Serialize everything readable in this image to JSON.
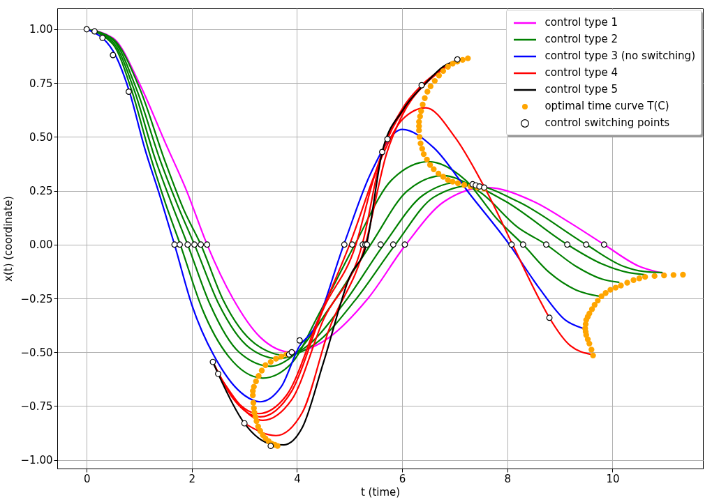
{
  "chart_data": {
    "type": "line",
    "xlabel": "t (time)",
    "ylabel": "x(t) (coordinate)",
    "xlim": [
      -0.56,
      11.72
    ],
    "ylim": [
      -1.04,
      1.097
    ],
    "xticks": [
      0,
      2,
      4,
      6,
      8,
      10
    ],
    "yticks": [
      {
        "value": -1,
        "label": "−1.00"
      },
      {
        "value": -0.75,
        "label": "−0.75"
      },
      {
        "value": -0.5,
        "label": "−0.50"
      },
      {
        "value": -0.25,
        "label": "−0.25"
      },
      {
        "value": 0,
        "label": "0.00"
      },
      {
        "value": 0.25,
        "label": "0.25"
      },
      {
        "value": 0.5,
        "label": "0.50"
      },
      {
        "value": 0.75,
        "label": "0.75"
      },
      {
        "value": 1,
        "label": "1.00"
      }
    ],
    "grid": true,
    "legend": "top right",
    "series": [
      {
        "name": "control type 1",
        "color": "#ff00ff",
        "x": [
          0,
          0.5,
          1,
          1.5,
          1.9,
          2.29,
          2.78,
          3.3,
          3.9,
          4.5,
          5.35,
          6.07,
          6.8,
          7.6,
          8.5,
          9.2,
          9.84,
          10.5,
          11.0
        ],
        "values": [
          1,
          0.96,
          0.75,
          0.47,
          0.25,
          0,
          -0.25,
          -0.43,
          -0.5,
          -0.45,
          -0.25,
          0,
          0.2,
          0.265,
          0.2,
          0.1,
          0,
          -0.1,
          -0.135
        ]
      },
      {
        "name": "control type 2",
        "color": "#008000",
        "x": [
          0,
          0.5,
          0.85,
          1.2,
          1.5,
          1.78,
          2.2,
          2.7,
          3.35,
          3.9,
          4.4,
          5.1,
          5.8,
          6.5,
          7.2,
          7.8,
          8.3,
          8.8,
          9.3,
          9.75
        ],
        "values": [
          1,
          0.93,
          0.72,
          0.42,
          0.19,
          0,
          -0.3,
          -0.52,
          -0.62,
          -0.55,
          -0.33,
          0,
          0.3,
          0.385,
          0.3,
          0.12,
          0,
          -0.13,
          -0.21,
          -0.24
        ]
      },
      {
        "color": "#008000",
        "x": [
          0,
          0.5,
          0.9,
          1.3,
          1.6,
          1.92,
          2.35,
          2.9,
          3.5,
          4.0,
          4.6,
          5.4,
          6.1,
          6.78,
          7.5,
          8.2,
          8.74,
          9.3,
          9.8,
          10.12
        ],
        "values": [
          1,
          0.94,
          0.72,
          0.4,
          0.2,
          0,
          -0.28,
          -0.5,
          -0.565,
          -0.5,
          -0.3,
          0,
          0.25,
          0.32,
          0.24,
          0.08,
          0,
          -0.1,
          -0.16,
          -0.175
        ]
      },
      {
        "color": "#008000",
        "x": [
          0,
          0.5,
          0.95,
          1.4,
          1.75,
          2.05,
          2.5,
          3.1,
          3.65,
          4.2,
          4.9,
          5.65,
          6.4,
          7.1,
          7.9,
          9.14,
          9.8,
          10.3,
          10.62
        ],
        "values": [
          1,
          0.95,
          0.72,
          0.39,
          0.17,
          0,
          -0.27,
          -0.48,
          -0.53,
          -0.47,
          -0.27,
          0,
          0.23,
          0.29,
          0.21,
          0,
          -0.09,
          -0.13,
          -0.14
        ]
      },
      {
        "color": "#008000",
        "x": [
          0,
          0.5,
          1.0,
          1.5,
          1.85,
          2.17,
          2.6,
          3.2,
          3.8,
          4.35,
          5.1,
          5.87,
          6.6,
          7.35,
          8.2,
          9.5,
          10.2,
          10.6,
          10.94
        ],
        "values": [
          1,
          0.955,
          0.73,
          0.38,
          0.16,
          0,
          -0.26,
          -0.46,
          -0.515,
          -0.46,
          -0.26,
          0,
          0.22,
          0.275,
          0.2,
          0,
          -0.1,
          -0.125,
          -0.13
        ]
      },
      {
        "name": "control type 3 (no switching)",
        "color": "#0000ff",
        "x": [
          0,
          0.5,
          0.8,
          1.1,
          1.4,
          1.67,
          2.0,
          2.5,
          3.0,
          3.3,
          3.7,
          4.05,
          4.3,
          4.89,
          5.4,
          6.0,
          6.6,
          7.3,
          8.04,
          8.6,
          9.1,
          9.45
        ],
        "values": [
          1,
          0.9,
          0.72,
          0.45,
          0.22,
          0,
          -0.28,
          -0.55,
          -0.7,
          -0.73,
          -0.66,
          -0.47,
          -0.4,
          0,
          0.33,
          0.535,
          0.45,
          0.23,
          0,
          -0.2,
          -0.35,
          -0.39
        ]
      },
      {
        "name": "control type 4",
        "color": "#ff0000",
        "x": [
          2.4,
          2.7,
          3.27,
          3.8,
          4.4,
          5.0,
          5.6,
          6.0,
          6.45,
          7.0,
          7.6,
          8.1,
          8.6,
          8.8,
          9.2,
          9.6
        ],
        "values": [
          -0.545,
          -0.68,
          -0.785,
          -0.7,
          -0.35,
          0,
          0.4,
          0.58,
          0.635,
          0.5,
          0.25,
          0,
          -0.25,
          -0.34,
          -0.47,
          -0.51
        ]
      },
      {
        "color": "#ff0000",
        "x": [
          2.4,
          2.8,
          3.3,
          3.9,
          4.5,
          5.12,
          5.45,
          5.72,
          6.1,
          6.5,
          7.05
        ],
        "values": [
          -0.545,
          -0.72,
          -0.8,
          -0.68,
          -0.3,
          0,
          0.3,
          0.49,
          0.65,
          0.76,
          0.86
        ]
      },
      {
        "color": "#ff0000",
        "x": [
          2.5,
          3.35,
          3.9,
          4.5,
          5.24,
          5.62,
          6.0,
          6.37,
          6.8,
          7.1
        ],
        "values": [
          -0.6,
          -0.816,
          -0.72,
          -0.35,
          0,
          0.43,
          0.63,
          0.74,
          0.82,
          0.86
        ]
      },
      {
        "color": "#ff0000",
        "x": [
          3.0,
          3.6,
          4.1,
          4.6,
          5.3,
          5.7,
          6.0,
          6.4,
          7.1
        ],
        "values": [
          -0.83,
          -0.887,
          -0.78,
          -0.4,
          0,
          0.42,
          0.6,
          0.74,
          0.86
        ]
      },
      {
        "name": "control type 5",
        "color": "#000000",
        "x": [
          2.4,
          2.5,
          3.0,
          3.5,
          3.75,
          4.1,
          4.5,
          5.0,
          5.32,
          5.62,
          6.0,
          6.45,
          6.8,
          7.1
        ],
        "values": [
          -0.545,
          -0.6,
          -0.83,
          -0.925,
          -0.93,
          -0.85,
          -0.55,
          -0.15,
          0,
          0.43,
          0.62,
          0.75,
          0.83,
          0.86
        ]
      },
      {
        "name": "optimal time curve T(C)",
        "color": "#ffa500",
        "type": "scatter",
        "marker": "circle",
        "x": [
          3.8,
          3.7,
          3.6,
          3.5,
          3.4,
          3.33,
          3.27,
          3.22,
          3.18,
          3.16,
          3.16,
          3.17,
          3.18,
          3.19,
          3.21,
          3.23,
          3.26,
          3.3,
          3.35,
          3.4,
          3.46,
          3.52,
          3.58,
          3.63,
          7.25,
          7.15,
          7.05,
          6.96,
          6.87,
          6.78,
          6.7,
          6.62,
          6.54,
          6.48,
          6.43,
          6.39,
          6.36,
          6.34,
          6.32,
          6.32,
          6.32,
          6.33,
          6.35,
          6.38,
          6.41,
          6.47,
          6.53,
          6.6,
          6.69,
          6.78,
          6.87,
          6.96,
          7.06,
          7.18,
          7.3,
          7.43,
          7.56,
          9.63,
          9.6,
          9.56,
          9.53,
          9.5,
          9.49,
          9.48,
          9.49,
          9.5,
          9.53,
          9.56,
          9.61,
          9.66,
          9.72,
          9.79,
          9.87,
          9.96,
          10.06,
          10.16,
          10.28,
          10.4,
          10.51,
          10.62,
          10.8,
          10.98,
          11.16,
          11.34
        ],
        "values": [
          -0.51,
          -0.52,
          -0.53,
          -0.545,
          -0.56,
          -0.585,
          -0.61,
          -0.635,
          -0.66,
          -0.68,
          -0.7,
          -0.735,
          -0.76,
          -0.78,
          -0.8,
          -0.82,
          -0.845,
          -0.865,
          -0.885,
          -0.9,
          -0.913,
          -0.925,
          -0.93,
          -0.935,
          0.865,
          0.858,
          0.85,
          0.84,
          0.826,
          0.806,
          0.785,
          0.76,
          0.735,
          0.71,
          0.68,
          0.65,
          0.62,
          0.595,
          0.57,
          0.55,
          0.53,
          0.5,
          0.47,
          0.445,
          0.42,
          0.395,
          0.37,
          0.35,
          0.33,
          0.315,
          0.3,
          0.292,
          0.285,
          0.277,
          0.27,
          0.265,
          0.26,
          -0.515,
          -0.488,
          -0.46,
          -0.44,
          -0.42,
          -0.405,
          -0.39,
          -0.37,
          -0.35,
          -0.335,
          -0.32,
          -0.3,
          -0.28,
          -0.26,
          -0.24,
          -0.225,
          -0.21,
          -0.2,
          -0.19,
          -0.177,
          -0.165,
          -0.157,
          -0.15,
          -0.146,
          -0.143,
          -0.141,
          -0.14
        ]
      },
      {
        "name": "control switching points",
        "color": "#ffffff",
        "type": "scatter",
        "marker": "circle",
        "x": [
          0,
          0.15,
          0.3,
          0.5,
          0.8,
          1.67,
          1.77,
          1.92,
          2.05,
          2.17,
          2.29,
          2.4,
          2.5,
          3.0,
          3.5,
          3.85,
          3.9,
          4.05,
          4.9,
          5.05,
          5.25,
          5.3,
          5.33,
          5.59,
          5.83,
          6.05,
          5.62,
          5.72,
          6.37,
          7.05,
          7.34,
          7.4,
          7.47,
          7.56,
          8.08,
          8.3,
          8.74,
          9.14,
          9.5,
          9.84,
          8.8
        ],
        "values": [
          1,
          0.99,
          0.96,
          0.88,
          0.71,
          0,
          0,
          0,
          0,
          0,
          0,
          -0.545,
          -0.6,
          -0.83,
          -0.935,
          -0.51,
          -0.5,
          -0.445,
          0,
          0,
          0,
          0,
          0,
          0,
          0,
          0,
          0.43,
          0.49,
          0.74,
          0.86,
          0.28,
          0.275,
          0.27,
          0.265,
          0,
          0,
          0,
          0,
          0,
          0,
          -0.34
        ]
      }
    ]
  }
}
